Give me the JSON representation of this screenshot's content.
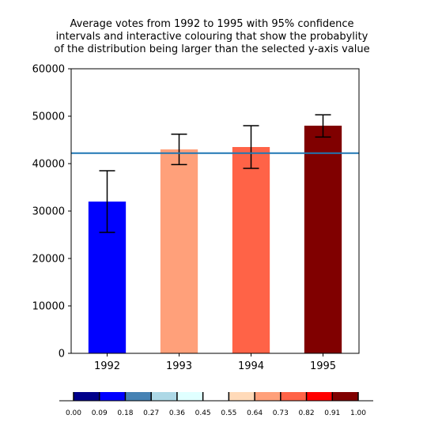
{
  "chart_data": {
    "type": "bar",
    "title_lines": [
      "Average votes from 1992 to 1995 with 95% confidence",
      "intervals and interactive colouring that show the probabylity",
      "of the distribution being larger than the selected y-axis value"
    ],
    "categories": [
      "1992",
      "1993",
      "1994",
      "1995"
    ],
    "values": [
      32000,
      43000,
      43500,
      48000
    ],
    "error_low": [
      25500,
      39800,
      39000,
      45600
    ],
    "error_high": [
      38500,
      46200,
      48000,
      50300
    ],
    "bar_colors": [
      "#0000ff",
      "#ffa07a",
      "#ff6347",
      "#800000"
    ],
    "reference_line": 42200,
    "reference_line_color": "#1f77b4",
    "ylim": [
      0,
      60000
    ],
    "yticks": [
      0,
      10000,
      20000,
      30000,
      40000,
      50000,
      60000
    ],
    "yticks_labels": [
      "0",
      "10000",
      "20000",
      "30000",
      "40000",
      "50000",
      "60000"
    ],
    "xlabel": "",
    "ylabel": "",
    "grid": false,
    "colorbar": {
      "ticks": [
        "0.00",
        "0.09",
        "0.18",
        "0.27",
        "0.36",
        "0.45",
        "0.55",
        "0.64",
        "0.73",
        "0.82",
        "0.91",
        "1.00"
      ],
      "segment_colors": [
        "#00008b",
        "#0000ff",
        "#4682b4",
        "#add8e6",
        "#e0ffff",
        "#ffffff",
        "#ffdab9",
        "#ffa07a",
        "#ff6347",
        "#ff0000",
        "#800000"
      ]
    }
  }
}
